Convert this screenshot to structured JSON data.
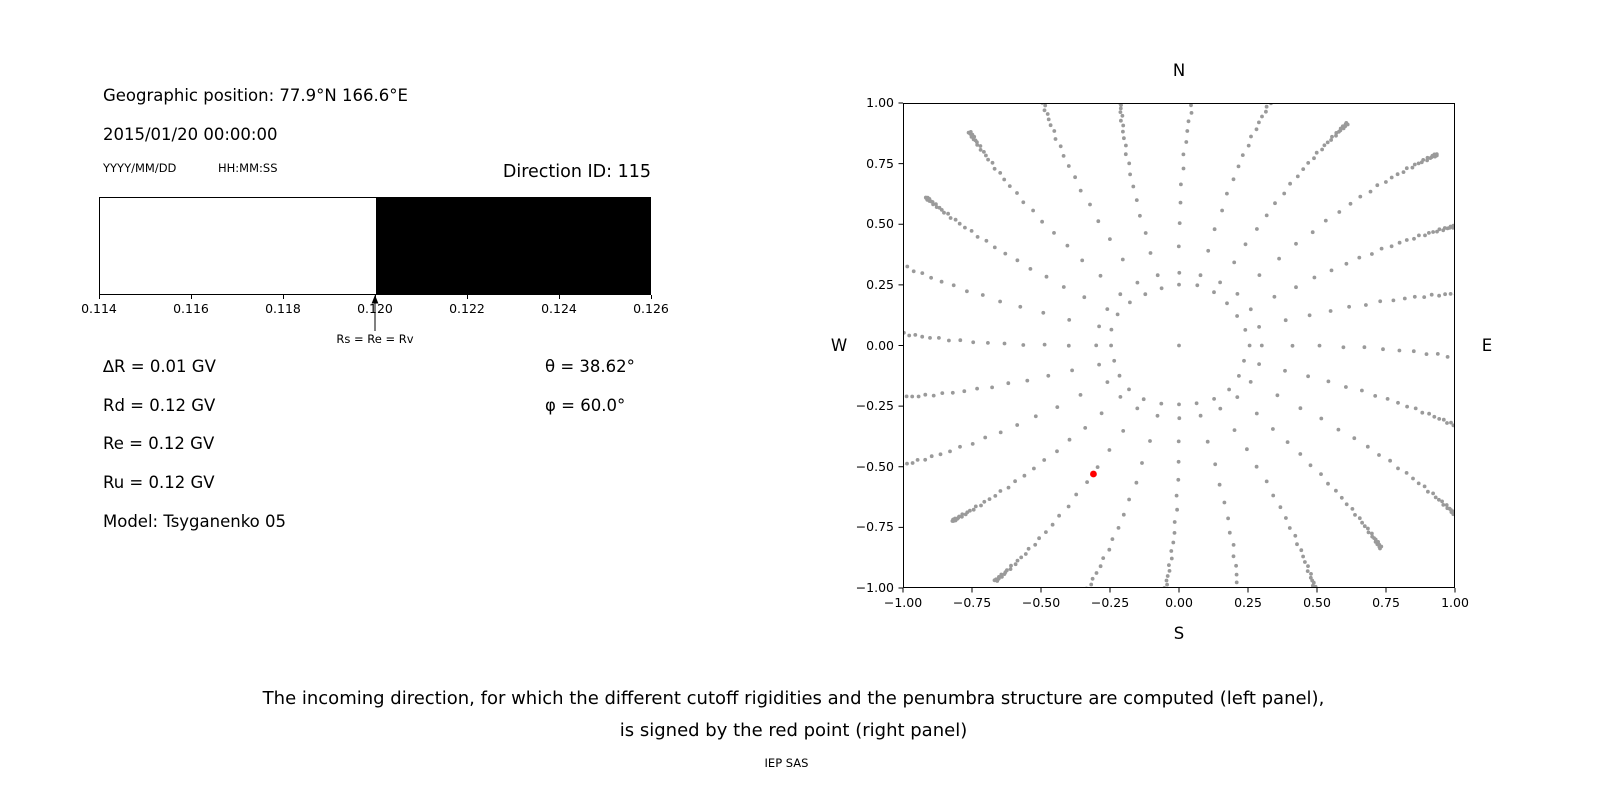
{
  "left_panel": {
    "geo_position": "Geographic position: 77.9°N 166.6°E",
    "datetime": "2015/01/20 00:00:00",
    "date_format": "YYYY/MM/DD",
    "time_format": "HH:MM:SS",
    "direction_id": "Direction ID: 115",
    "info_lines": [
      "∆R = 0.01 GV",
      "Rd = 0.12 GV",
      "Re = 0.12 GV",
      "Ru = 0.12 GV",
      "Model: Tsyganenko 05"
    ],
    "theta": "θ = 38.62°",
    "phi": "φ = 60.0°",
    "arrow_label": "Rs = Re = Rv"
  },
  "caption": {
    "lines": [
      "The incoming direction, for which the different cutoff rigidities and the penumbra structure are computed (left panel),",
      "is signed by the red point (right panel)"
    ]
  },
  "footer": {
    "credit": "IEP SAS"
  },
  "chart_data": [
    {
      "type": "bar",
      "xlim": [
        0.114,
        0.126
      ],
      "x_ticks": [
        0.114,
        0.116,
        0.118,
        0.12,
        0.122,
        0.124,
        0.126
      ],
      "bands": [
        {
          "from": 0.114,
          "to": 0.12,
          "color": "#ffffff"
        },
        {
          "from": 0.12,
          "to": 0.126,
          "color": "#000000"
        }
      ],
      "marker": {
        "x": 0.12
      }
    },
    {
      "type": "scatter",
      "xlim": [
        -1,
        1
      ],
      "ylim": [
        -1,
        1
      ],
      "x_ticks": [
        -1,
        -0.75,
        -0.5,
        -0.25,
        0,
        0.25,
        0.5,
        0.75,
        1
      ],
      "y_ticks": [
        1,
        0.75,
        0.5,
        0.25,
        0,
        -0.25,
        -0.5,
        -0.75,
        -1
      ],
      "compass_labels": {
        "top": "N",
        "bottom": "S",
        "left": "W",
        "right": "E"
      },
      "dot_color": "#9a9a9a",
      "grid": {
        "n_rays": 24,
        "ray_angle_step_deg": 15,
        "r_start": 0.3,
        "r_accumulate": 1.18,
        "dots_per_ray": 30,
        "curvature": -0.1,
        "inner_ring_radius": 0.25,
        "inner_ring_dots": 24,
        "center_dot": true
      },
      "red_point": {
        "x": -0.31,
        "y": -0.53,
        "color": "#ff0000"
      }
    }
  ]
}
